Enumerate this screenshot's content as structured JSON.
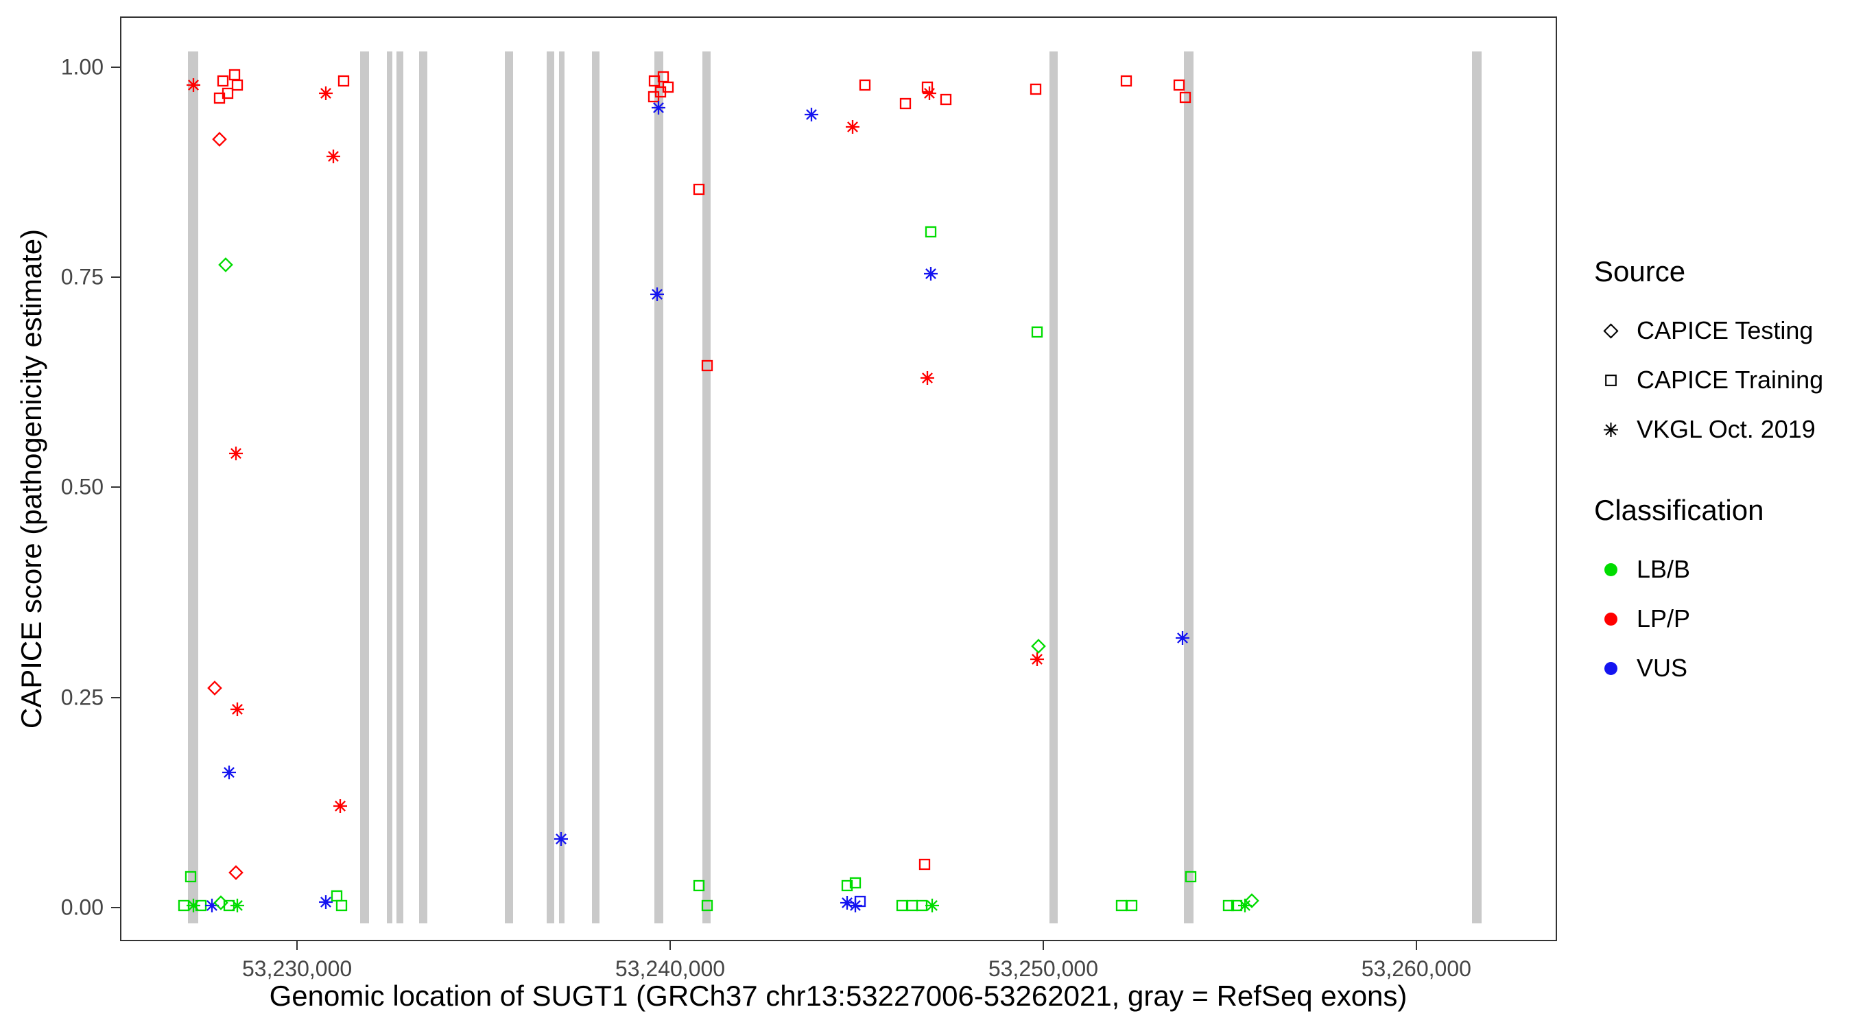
{
  "colors": {
    "LB/B": "#00dc00",
    "LP/P": "#ff0000",
    "VUS": "#1414f0",
    "exon": "#c9c9c9",
    "axis_text": "#454545"
  },
  "legend": {
    "source": {
      "title": "Source",
      "items": [
        {
          "shape": "diamond",
          "label": "CAPICE Testing"
        },
        {
          "shape": "square",
          "label": "CAPICE Training"
        },
        {
          "shape": "asterisk",
          "label": "VKGL Oct. 2019"
        }
      ]
    },
    "classification": {
      "title": "Classification",
      "items": [
        {
          "color_key": "LB/B",
          "label": "LB/B"
        },
        {
          "color_key": "LP/P",
          "label": "LP/P"
        },
        {
          "color_key": "VUS",
          "label": "VUS"
        }
      ]
    }
  },
  "chart_data": {
    "type": "scatter",
    "x_title": "Genomic location of SUGT1 (GRCh37 chr13:53227006-53262021, gray = RefSeq exons)",
    "y_title": "CAPICE score (pathogenicity estimate)",
    "x_range": [
      53225255,
      53263772
    ],
    "y_range": [
      -0.04,
      1.06
    ],
    "x_ticks": [
      {
        "v": 53230000,
        "label": "53,230,000"
      },
      {
        "v": 53240000,
        "label": "53,240,000"
      },
      {
        "v": 53250000,
        "label": "53,250,000"
      },
      {
        "v": 53260000,
        "label": "53,260,000"
      }
    ],
    "y_ticks": [
      {
        "v": 0.0,
        "label": "0.00"
      },
      {
        "v": 0.25,
        "label": "0.25"
      },
      {
        "v": 0.5,
        "label": "0.50"
      },
      {
        "v": 0.75,
        "label": "0.75"
      },
      {
        "v": 1.0,
        "label": "1.00"
      }
    ],
    "grid": false,
    "legend_position": "right",
    "exon_band": {
      "top": 1.02,
      "bottom": -0.02
    },
    "exons": [
      {
        "start": 53227050,
        "end": 53227310
      },
      {
        "start": 53231670,
        "end": 53231900
      },
      {
        "start": 53232380,
        "end": 53232540
      },
      {
        "start": 53232640,
        "end": 53232830
      },
      {
        "start": 53233250,
        "end": 53233470
      },
      {
        "start": 53235560,
        "end": 53235780
      },
      {
        "start": 53236680,
        "end": 53236880
      },
      {
        "start": 53237000,
        "end": 53237160
      },
      {
        "start": 53237900,
        "end": 53238100
      },
      {
        "start": 53239570,
        "end": 53239800
      },
      {
        "start": 53240860,
        "end": 53241080
      },
      {
        "start": 53250170,
        "end": 53250390
      },
      {
        "start": 53253790,
        "end": 53254050
      },
      {
        "start": 53261530,
        "end": 53261790
      }
    ],
    "points": [
      {
        "p": 53227180,
        "s": 0.98,
        "src": "vkgl",
        "c": "LP/P"
      },
      {
        "p": 53227990,
        "s": 0.985,
        "src": "training",
        "c": "LP/P"
      },
      {
        "p": 53228300,
        "s": 0.992,
        "src": "training",
        "c": "LP/P"
      },
      {
        "p": 53228110,
        "s": 0.97,
        "src": "training",
        "c": "LP/P"
      },
      {
        "p": 53228370,
        "s": 0.98,
        "src": "training",
        "c": "LP/P"
      },
      {
        "p": 53227890,
        "s": 0.964,
        "src": "training",
        "c": "LP/P"
      },
      {
        "p": 53227890,
        "s": 0.915,
        "src": "testing",
        "c": "LP/P"
      },
      {
        "p": 53228050,
        "s": 0.765,
        "src": "testing",
        "c": "LB/B"
      },
      {
        "p": 53228340,
        "s": 0.54,
        "src": "vkgl",
        "c": "LP/P"
      },
      {
        "p": 53227760,
        "s": 0.26,
        "src": "testing",
        "c": "LP/P"
      },
      {
        "p": 53228370,
        "s": 0.235,
        "src": "vkgl",
        "c": "LP/P"
      },
      {
        "p": 53228140,
        "s": 0.16,
        "src": "vkgl",
        "c": "VUS"
      },
      {
        "p": 53227120,
        "s": 0.035,
        "src": "training",
        "c": "LB/B"
      },
      {
        "p": 53228340,
        "s": 0.04,
        "src": "testing",
        "c": "LP/P"
      },
      {
        "p": 53226930,
        "s": 0.001,
        "src": "training",
        "c": "LB/B"
      },
      {
        "p": 53227180,
        "s": 0.001,
        "src": "vkgl",
        "c": "LB/B"
      },
      {
        "p": 53227400,
        "s": 0.001,
        "src": "training",
        "c": "LB/B"
      },
      {
        "p": 53227690,
        "s": 0.001,
        "src": "vkgl",
        "c": "VUS"
      },
      {
        "p": 53227920,
        "s": 0.004,
        "src": "testing",
        "c": "LB/B"
      },
      {
        "p": 53228140,
        "s": 0.001,
        "src": "training",
        "c": "LB/B"
      },
      {
        "p": 53228370,
        "s": 0.001,
        "src": "vkgl",
        "c": "LB/B"
      },
      {
        "p": 53230740,
        "s": 0.97,
        "src": "vkgl",
        "c": "LP/P"
      },
      {
        "p": 53231230,
        "s": 0.985,
        "src": "training",
        "c": "LP/P"
      },
      {
        "p": 53230940,
        "s": 0.895,
        "src": "vkgl",
        "c": "LP/P"
      },
      {
        "p": 53231130,
        "s": 0.12,
        "src": "vkgl",
        "c": "LP/P"
      },
      {
        "p": 53230740,
        "s": 0.005,
        "src": "vkgl",
        "c": "VUS"
      },
      {
        "p": 53231030,
        "s": 0.012,
        "src": "training",
        "c": "LB/B"
      },
      {
        "p": 53231160,
        "s": 0.001,
        "src": "training",
        "c": "LB/B"
      },
      {
        "p": 53237070,
        "s": 0.08,
        "src": "vkgl",
        "c": "VUS"
      },
      {
        "p": 53239570,
        "s": 0.985,
        "src": "training",
        "c": "LP/P"
      },
      {
        "p": 53239800,
        "s": 0.99,
        "src": "training",
        "c": "LP/P"
      },
      {
        "p": 53239730,
        "s": 0.972,
        "src": "training",
        "c": "LP/P"
      },
      {
        "p": 53239930,
        "s": 0.977,
        "src": "training",
        "c": "LP/P"
      },
      {
        "p": 53239540,
        "s": 0.966,
        "src": "training",
        "c": "LP/P"
      },
      {
        "p": 53239670,
        "s": 0.953,
        "src": "vkgl",
        "c": "VUS"
      },
      {
        "p": 53239640,
        "s": 0.73,
        "src": "vkgl",
        "c": "VUS"
      },
      {
        "p": 53240760,
        "s": 0.855,
        "src": "training",
        "c": "LP/P"
      },
      {
        "p": 53240980,
        "s": 0.645,
        "src": "training",
        "c": "LP/P"
      },
      {
        "p": 53240760,
        "s": 0.025,
        "src": "training",
        "c": "LB/B"
      },
      {
        "p": 53240980,
        "s": 0.001,
        "src": "training",
        "c": "LB/B"
      },
      {
        "p": 53243780,
        "s": 0.945,
        "src": "vkgl",
        "c": "VUS"
      },
      {
        "p": 53244900,
        "s": 0.93,
        "src": "vkgl",
        "c": "LP/P"
      },
      {
        "p": 53245220,
        "s": 0.98,
        "src": "training",
        "c": "LP/P"
      },
      {
        "p": 53246310,
        "s": 0.958,
        "src": "training",
        "c": "LP/P"
      },
      {
        "p": 53246890,
        "s": 0.977,
        "src": "training",
        "c": "LP/P"
      },
      {
        "p": 53246950,
        "s": 0.97,
        "src": "vkgl",
        "c": "LP/P"
      },
      {
        "p": 53247400,
        "s": 0.963,
        "src": "training",
        "c": "LP/P"
      },
      {
        "p": 53246990,
        "s": 0.805,
        "src": "training",
        "c": "LB/B"
      },
      {
        "p": 53246990,
        "s": 0.755,
        "src": "vkgl",
        "c": "VUS"
      },
      {
        "p": 53246890,
        "s": 0.63,
        "src": "vkgl",
        "c": "LP/P"
      },
      {
        "p": 53246830,
        "s": 0.05,
        "src": "training",
        "c": "LP/P"
      },
      {
        "p": 53244740,
        "s": 0.025,
        "src": "training",
        "c": "LB/B"
      },
      {
        "p": 53244960,
        "s": 0.028,
        "src": "training",
        "c": "LB/B"
      },
      {
        "p": 53244740,
        "s": 0.004,
        "src": "vkgl",
        "c": "VUS"
      },
      {
        "p": 53244960,
        "s": 0.001,
        "src": "vkgl",
        "c": "VUS"
      },
      {
        "p": 53245100,
        "s": 0.006,
        "src": "training",
        "c": "VUS"
      },
      {
        "p": 53246220,
        "s": 0.001,
        "src": "training",
        "c": "LB/B"
      },
      {
        "p": 53246500,
        "s": 0.001,
        "src": "training",
        "c": "LB/B"
      },
      {
        "p": 53246760,
        "s": 0.001,
        "src": "training",
        "c": "LB/B"
      },
      {
        "p": 53247020,
        "s": 0.001,
        "src": "vkgl",
        "c": "LB/B"
      },
      {
        "p": 53249810,
        "s": 0.975,
        "src": "training",
        "c": "LP/P"
      },
      {
        "p": 53249840,
        "s": 0.685,
        "src": "training",
        "c": "LB/B"
      },
      {
        "p": 53249880,
        "s": 0.31,
        "src": "testing",
        "c": "LB/B"
      },
      {
        "p": 53249840,
        "s": 0.295,
        "src": "vkgl",
        "c": "LP/P"
      },
      {
        "p": 53252250,
        "s": 0.985,
        "src": "training",
        "c": "LP/P"
      },
      {
        "p": 53253660,
        "s": 0.98,
        "src": "training",
        "c": "LP/P"
      },
      {
        "p": 53253820,
        "s": 0.965,
        "src": "training",
        "c": "LP/P"
      },
      {
        "p": 53253760,
        "s": 0.32,
        "src": "vkgl",
        "c": "VUS"
      },
      {
        "p": 53252120,
        "s": 0.001,
        "src": "training",
        "c": "LB/B"
      },
      {
        "p": 53252380,
        "s": 0.001,
        "src": "training",
        "c": "LB/B"
      },
      {
        "p": 53253980,
        "s": 0.035,
        "src": "training",
        "c": "LB/B"
      },
      {
        "p": 53254980,
        "s": 0.001,
        "src": "training",
        "c": "LB/B"
      },
      {
        "p": 53255200,
        "s": 0.001,
        "src": "training",
        "c": "LB/B"
      },
      {
        "p": 53255430,
        "s": 0.001,
        "src": "vkgl",
        "c": "LB/B"
      },
      {
        "p": 53255620,
        "s": 0.007,
        "src": "testing",
        "c": "LB/B"
      }
    ]
  }
}
